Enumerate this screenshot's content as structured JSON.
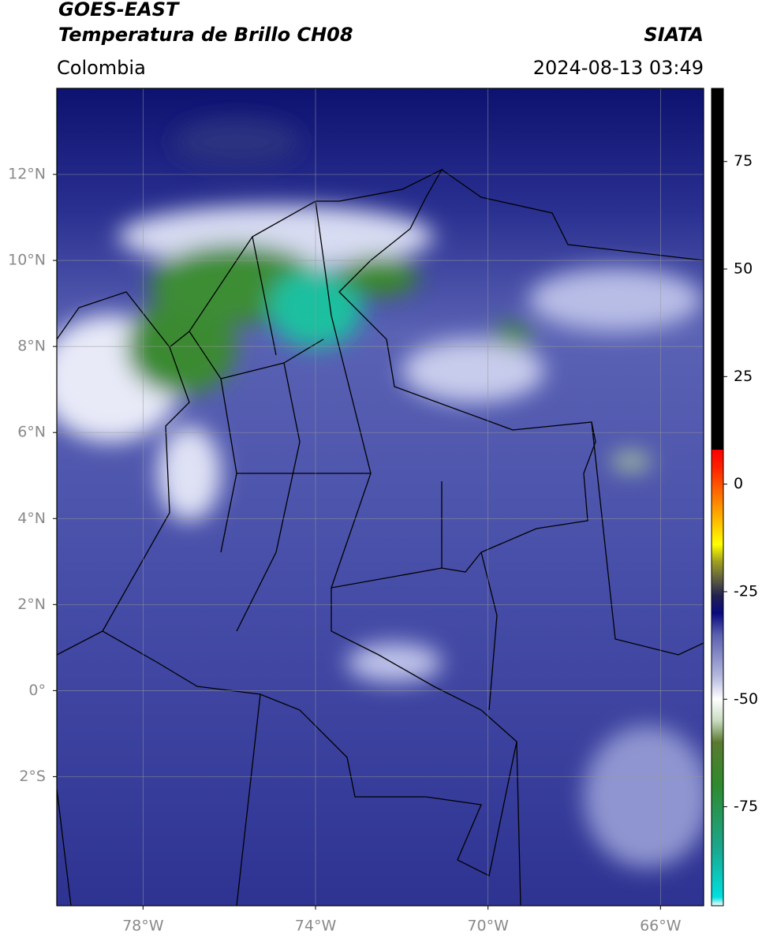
{
  "header": {
    "title": "GOES-EAST",
    "subtitle": "Temperatura de Brillo CH08",
    "region": "Colombia",
    "source": "SIATA",
    "datetime": "2024-08-13 03:49"
  },
  "map": {
    "xlim": [
      -80,
      -65
    ],
    "ylim": [
      -5,
      14
    ],
    "grid": true,
    "xticks": [
      {
        "value": -78,
        "label": "78°W"
      },
      {
        "value": -74,
        "label": "74°W"
      },
      {
        "value": -70,
        "label": "70°W"
      },
      {
        "value": -66,
        "label": "66°W"
      }
    ],
    "yticks": [
      {
        "value": 12,
        "label": "12°N"
      },
      {
        "value": 10,
        "label": "10°N"
      },
      {
        "value": 8,
        "label": "8°N"
      },
      {
        "value": 6,
        "label": "6°N"
      },
      {
        "value": 4,
        "label": "4°N"
      },
      {
        "value": 2,
        "label": "2°N"
      },
      {
        "value": 0,
        "label": "0°"
      },
      {
        "value": -2,
        "label": "2°S"
      }
    ]
  },
  "colorbar": {
    "lim": [
      -98,
      92
    ],
    "ticks": [
      75,
      50,
      25,
      0,
      -25,
      -50,
      -75
    ],
    "stops": [
      {
        "value": -98,
        "color": "#ffffff"
      },
      {
        "value": -96,
        "color": "#00e0e0"
      },
      {
        "value": -85,
        "color": "#1aa890"
      },
      {
        "value": -70,
        "color": "#2e8a2e"
      },
      {
        "value": -60,
        "color": "#5a7a30"
      },
      {
        "value": -55,
        "color": "#c8dcc0"
      },
      {
        "value": -50,
        "color": "#ffffff"
      },
      {
        "value": -45,
        "color": "#b8bce0"
      },
      {
        "value": -35,
        "color": "#5a5fb0"
      },
      {
        "value": -30,
        "color": "#0a0a80"
      },
      {
        "value": -26,
        "color": "#202050"
      },
      {
        "value": -22,
        "color": "#606040"
      },
      {
        "value": -18,
        "color": "#a0a020"
      },
      {
        "value": -14,
        "color": "#ffff00"
      },
      {
        "value": -5,
        "color": "#ff9000"
      },
      {
        "value": 4,
        "color": "#ff2000"
      },
      {
        "value": 8,
        "color": "#ff0000"
      },
      {
        "value": 8.01,
        "color": "#000000"
      },
      {
        "value": 92,
        "color": "#000000"
      }
    ]
  }
}
